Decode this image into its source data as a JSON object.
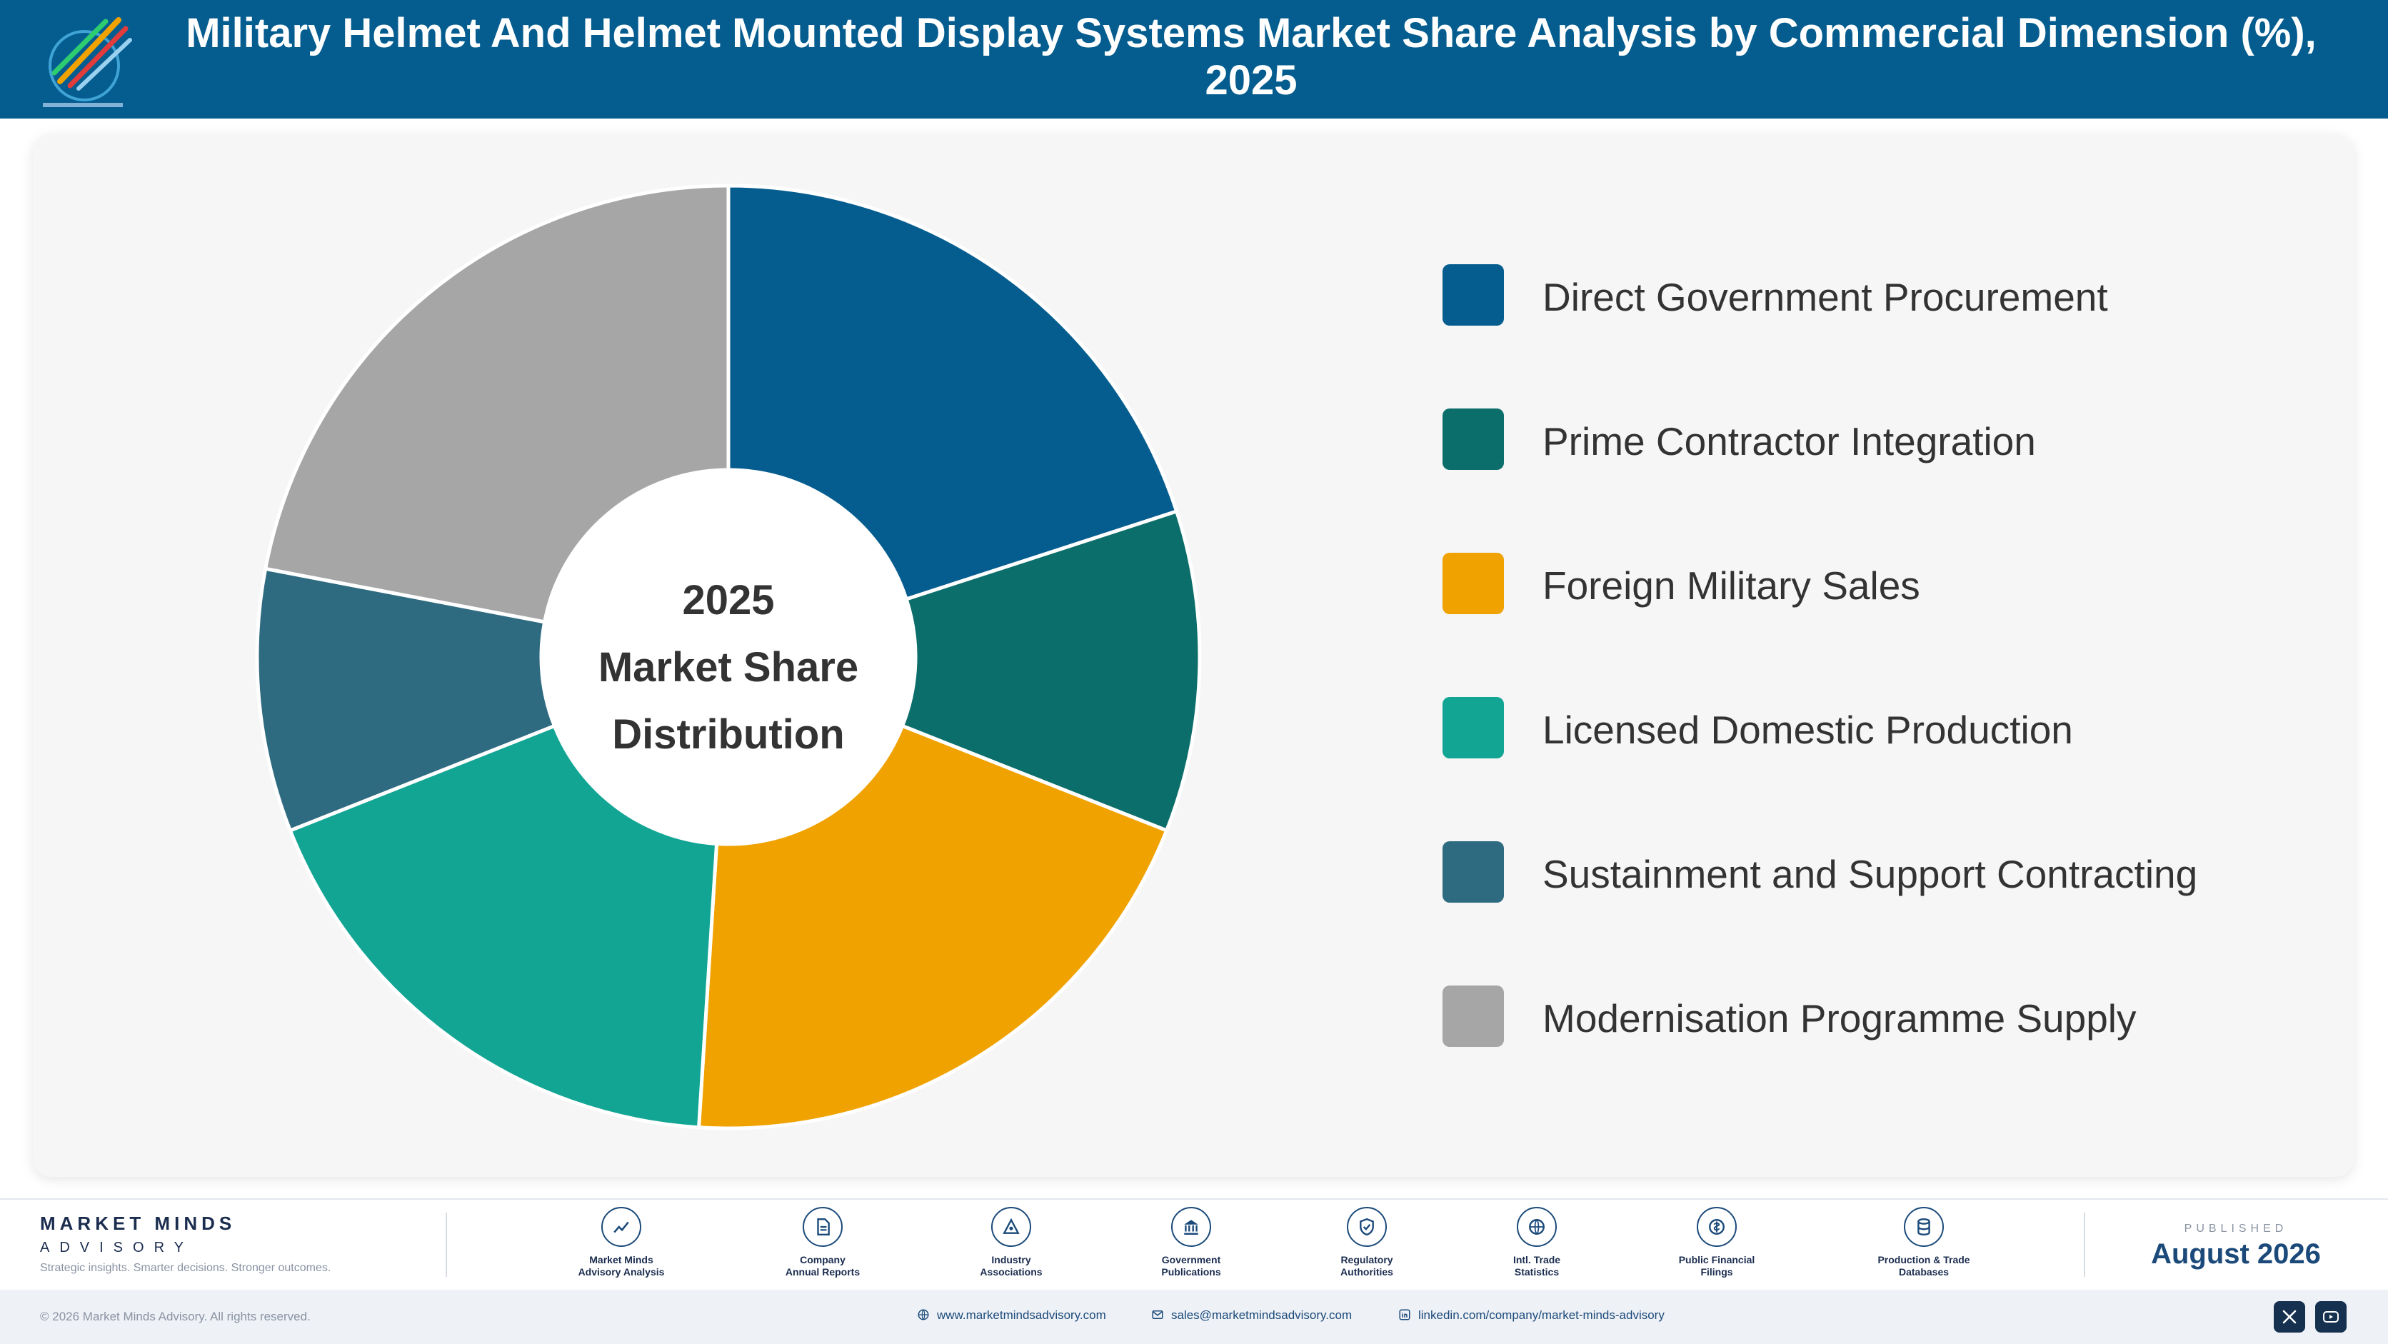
{
  "header": {
    "title": "Military Helmet And Helmet Mounted Display Systems Market Share Analysis by Commercial Dimension (%), 2025",
    "logo_icon": "market-minds-logo-icon"
  },
  "chart_data": {
    "type": "pie",
    "title": "Military Helmet And Helmet Mounted Display Systems Market Share Analysis by Commercial Dimension (%), 2025",
    "center_label": [
      "2025",
      "Market Share",
      "Distribution"
    ],
    "categories": [
      "Direct Government Procurement",
      "Prime Contractor Integration",
      "Foreign Military Sales",
      "Licensed Domestic Production",
      "Sustainment and Support Contracting",
      "Modernisation Programme Supply"
    ],
    "values": [
      20,
      11,
      20,
      18,
      9,
      22
    ],
    "colors": [
      "#055d8f",
      "#0c6e6a",
      "#f0a200",
      "#12a594",
      "#2f6b80",
      "#a6a6a6"
    ],
    "legend_position": "right",
    "donut": true
  },
  "footer": {
    "brand_name": "MARKET MINDS",
    "brand_sub": "ADVISORY",
    "tagline": "Strategic insights. Smarter decisions. Stronger outcomes.",
    "sources": [
      {
        "label": "Market Minds\nAdvisory Analysis",
        "icon": "trend-chart-icon"
      },
      {
        "label": "Company\nAnnual Reports",
        "icon": "document-icon"
      },
      {
        "label": "Industry\nAssociations",
        "icon": "network-icon"
      },
      {
        "label": "Government\nPublications",
        "icon": "government-building-icon"
      },
      {
        "label": "Regulatory\nAuthorities",
        "icon": "shield-check-icon"
      },
      {
        "label": "Intl. Trade\nStatistics",
        "icon": "globe-icon"
      },
      {
        "label": "Public Financial\nFilings",
        "icon": "coin-icon"
      },
      {
        "label": "Production & Trade\nDatabases",
        "icon": "database-icon"
      }
    ],
    "published_label": "PUBLISHED",
    "published_date": "August 2026",
    "copyright": "© 2026 Market Minds Advisory. All rights reserved.",
    "website": "www.marketmindsadvisory.com",
    "email": "sales@marketmindsadvisory.com",
    "linkedin": "linkedin.com/company/market-minds-advisory",
    "social": [
      {
        "name": "x",
        "icon": "x-icon"
      },
      {
        "name": "youtube",
        "icon": "youtube-icon"
      }
    ]
  }
}
